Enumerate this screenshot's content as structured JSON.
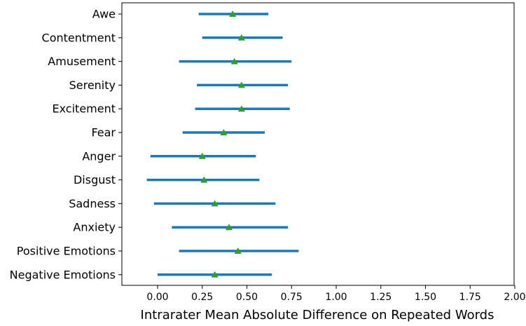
{
  "chart_data": {
    "type": "errorbar",
    "xlabel": "Intrarater Mean Absolute Difference on Repeated Words",
    "xlim": [
      -0.2,
      2.0
    ],
    "xticks": [
      0.0,
      0.25,
      0.5,
      0.75,
      1.0,
      1.25,
      1.5,
      1.75,
      2.0
    ],
    "xtick_labels": [
      "0.00",
      "0.25",
      "0.50",
      "0.75",
      "1.00",
      "1.25",
      "1.50",
      "1.75",
      "2.00"
    ],
    "grid": false,
    "colors": {
      "bar": "#1f77b4",
      "marker": "#2ca02c"
    },
    "categories": [
      "Awe",
      "Contentment",
      "Amusement",
      "Serenity",
      "Excitement",
      "Fear",
      "Anger",
      "Disgust",
      "Sadness",
      "Anxiety",
      "Positive Emotions",
      "Negative Emotions"
    ],
    "mean": [
      0.42,
      0.47,
      0.43,
      0.47,
      0.47,
      0.37,
      0.25,
      0.26,
      0.32,
      0.4,
      0.45,
      0.32
    ],
    "low": [
      0.23,
      0.25,
      0.12,
      0.22,
      0.21,
      0.14,
      -0.04,
      -0.06,
      -0.02,
      0.08,
      0.12,
      0.0
    ],
    "high": [
      0.62,
      0.7,
      0.75,
      0.73,
      0.74,
      0.6,
      0.55,
      0.57,
      0.66,
      0.73,
      0.79,
      0.64
    ]
  }
}
